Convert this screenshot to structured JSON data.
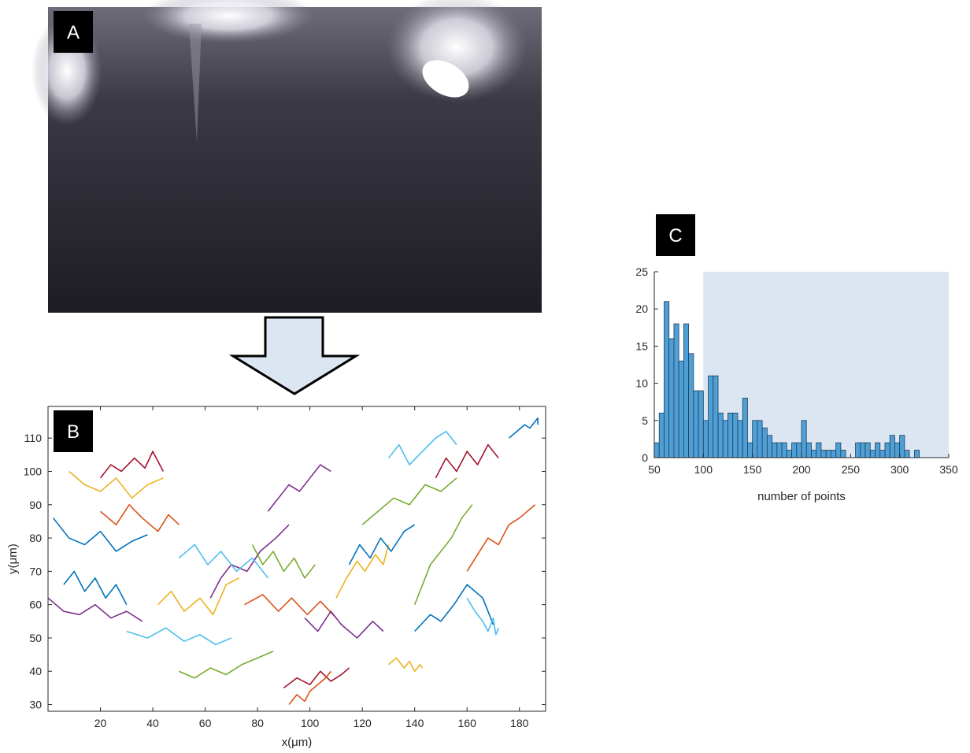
{
  "panel_labels": [
    "A",
    "B",
    "C"
  ],
  "chart_data": [
    {
      "type": "line",
      "xlabel": "x(μm)",
      "ylabel": "y(μm)",
      "xlim": [
        0,
        190
      ],
      "ylim": [
        28,
        119.5
      ],
      "xticks": [
        20,
        40,
        60,
        80,
        100,
        120,
        140,
        160,
        180
      ],
      "yticks": [
        30,
        40,
        50,
        60,
        70,
        80,
        90,
        100,
        110
      ],
      "series": [
        {
          "color": "#0072BD",
          "x": [
            140,
            146,
            150,
            155,
            160,
            166,
            170
          ],
          "values": [
            52,
            57,
            55,
            60,
            66,
            62,
            54
          ]
        },
        {
          "color": "#D95319",
          "x": [
            75,
            82,
            88,
            93,
            99,
            104,
            110
          ],
          "values": [
            60,
            63,
            58,
            62,
            57,
            61,
            56
          ]
        },
        {
          "color": "#EDB120",
          "x": [
            110,
            114,
            118,
            121,
            125,
            128,
            130
          ],
          "values": [
            62,
            68,
            73,
            70,
            75,
            72,
            78
          ]
        },
        {
          "color": "#7E2F8E",
          "x": [
            0,
            6,
            12,
            18,
            24,
            30,
            36
          ],
          "values": [
            62,
            58,
            57,
            60,
            56,
            58,
            55
          ]
        },
        {
          "color": "#77AC30",
          "x": [
            50,
            56,
            62,
            68,
            74,
            80,
            86
          ],
          "values": [
            40,
            38,
            41,
            39,
            42,
            44,
            46
          ]
        },
        {
          "color": "#4DBEEE",
          "x": [
            30,
            38,
            45,
            52,
            58,
            64,
            70
          ],
          "values": [
            52,
            50,
            53,
            49,
            51,
            48,
            50
          ]
        },
        {
          "color": "#A2142F",
          "x": [
            90,
            95,
            100,
            104,
            108,
            112,
            115
          ],
          "values": [
            35,
            38,
            36,
            40,
            37,
            39,
            41
          ]
        },
        {
          "color": "#0072BD",
          "x": [
            2,
            8,
            14,
            20,
            26,
            32,
            38
          ],
          "values": [
            86,
            80,
            78,
            82,
            76,
            79,
            81
          ]
        },
        {
          "color": "#D95319",
          "x": [
            20,
            26,
            31,
            36,
            42,
            46,
            50
          ],
          "values": [
            88,
            84,
            90,
            86,
            82,
            87,
            84
          ]
        },
        {
          "color": "#EDB120",
          "x": [
            42,
            47,
            52,
            58,
            63,
            68,
            73
          ],
          "values": [
            60,
            64,
            58,
            62,
            57,
            66,
            68
          ]
        },
        {
          "color": "#7E2F8E",
          "x": [
            62,
            66,
            70,
            76,
            81,
            87,
            92
          ],
          "values": [
            62,
            68,
            72,
            70,
            76,
            80,
            84
          ]
        },
        {
          "color": "#77AC30",
          "x": [
            120,
            126,
            132,
            138,
            144,
            150,
            156
          ],
          "values": [
            84,
            88,
            92,
            90,
            96,
            94,
            98
          ]
        },
        {
          "color": "#4DBEEE",
          "x": [
            130,
            134,
            138,
            143,
            148,
            152,
            156
          ],
          "values": [
            104,
            108,
            102,
            106,
            110,
            112,
            108
          ]
        },
        {
          "color": "#A2142F",
          "x": [
            148,
            152,
            156,
            160,
            164,
            168,
            172
          ],
          "values": [
            98,
            104,
            100,
            106,
            102,
            108,
            104
          ]
        },
        {
          "color": "#0072BD",
          "x": [
            115,
            119,
            123,
            127,
            131,
            136,
            140
          ],
          "values": [
            72,
            78,
            74,
            80,
            76,
            82,
            84
          ]
        },
        {
          "color": "#D95319",
          "x": [
            160,
            164,
            168,
            172,
            176,
            180,
            186
          ],
          "values": [
            70,
            75,
            80,
            78,
            84,
            86,
            90
          ]
        },
        {
          "color": "#EDB120",
          "x": [
            8,
            14,
            20,
            26,
            32,
            38,
            44
          ],
          "values": [
            100,
            96,
            94,
            98,
            92,
            96,
            98
          ]
        },
        {
          "color": "#7E2F8E",
          "x": [
            98,
            103,
            108,
            112,
            118,
            124,
            128
          ],
          "values": [
            56,
            52,
            58,
            54,
            50,
            55,
            52
          ]
        },
        {
          "color": "#77AC30",
          "x": [
            78,
            82,
            86,
            90,
            94,
            98,
            102
          ],
          "values": [
            78,
            72,
            76,
            70,
            74,
            68,
            72
          ]
        },
        {
          "color": "#4DBEEE",
          "x": [
            50,
            56,
            61,
            66,
            72,
            78,
            84
          ],
          "values": [
            74,
            78,
            72,
            76,
            70,
            74,
            68
          ]
        },
        {
          "color": "#A2142F",
          "x": [
            20,
            24,
            28,
            33,
            37,
            40,
            44
          ],
          "values": [
            98,
            102,
            100,
            104,
            101,
            106,
            100
          ]
        },
        {
          "color": "#0072BD",
          "x": [
            176,
            179,
            182,
            184,
            186,
            187,
            187
          ],
          "values": [
            110,
            112,
            114,
            113,
            115,
            116,
            114
          ]
        },
        {
          "color": "#D95319",
          "x": [
            92,
            95,
            98,
            100,
            103,
            106,
            108
          ],
          "values": [
            30,
            33,
            31,
            34,
            36,
            38,
            40
          ]
        },
        {
          "color": "#EDB120",
          "x": [
            130,
            133,
            136,
            138,
            140,
            142,
            143
          ],
          "values": [
            42,
            44,
            41,
            43,
            40,
            42,
            41
          ]
        },
        {
          "color": "#77AC30",
          "x": [
            140,
            143,
            146,
            150,
            154,
            158,
            162
          ],
          "values": [
            60,
            66,
            72,
            76,
            80,
            86,
            90
          ]
        },
        {
          "color": "#4DBEEE",
          "x": [
            160,
            163,
            166,
            168,
            170,
            171,
            172
          ],
          "values": [
            62,
            58,
            55,
            52,
            56,
            51,
            53
          ]
        },
        {
          "color": "#7E2F8E",
          "x": [
            84,
            88,
            92,
            96,
            100,
            104,
            108
          ],
          "values": [
            88,
            92,
            96,
            94,
            98,
            102,
            100
          ]
        },
        {
          "color": "#0072BD",
          "x": [
            6,
            10,
            14,
            18,
            22,
            26,
            30
          ],
          "values": [
            66,
            70,
            64,
            68,
            62,
            66,
            60
          ]
        }
      ]
    },
    {
      "type": "histogram",
      "xlabel": "number of points",
      "xlim": [
        50,
        350
      ],
      "ylim": [
        0,
        25
      ],
      "xticks": [
        50,
        100,
        150,
        200,
        250,
        300,
        350
      ],
      "yticks": [
        0,
        5,
        10,
        15,
        20,
        25
      ],
      "color": "#4E9FD6",
      "shade": [
        100,
        350
      ],
      "shade_color": "#DCE6F2",
      "bins": [
        50,
        55,
        60,
        65,
        70,
        75,
        80,
        85,
        90,
        95,
        100,
        105,
        110,
        115,
        120,
        125,
        130,
        135,
        140,
        145,
        150,
        155,
        160,
        165,
        170,
        175,
        180,
        185,
        190,
        195,
        200,
        205,
        210,
        215,
        220,
        225,
        230,
        235,
        240,
        245,
        250,
        255,
        260,
        265,
        270,
        275,
        280,
        285,
        290,
        295,
        300,
        305,
        310,
        315,
        320,
        325
      ],
      "values": [
        2,
        6,
        21,
        16,
        18,
        13,
        18,
        14,
        9,
        9,
        5,
        11,
        11,
        6,
        5,
        6,
        6,
        5,
        8,
        2,
        5,
        5,
        4,
        3,
        2,
        2,
        2,
        1,
        2,
        2,
        5,
        2,
        1,
        2,
        1,
        1,
        1,
        2,
        1,
        0,
        0,
        2,
        2,
        2,
        1,
        2,
        1,
        2,
        3,
        2,
        3,
        1,
        0,
        1,
        0
      ]
    }
  ]
}
